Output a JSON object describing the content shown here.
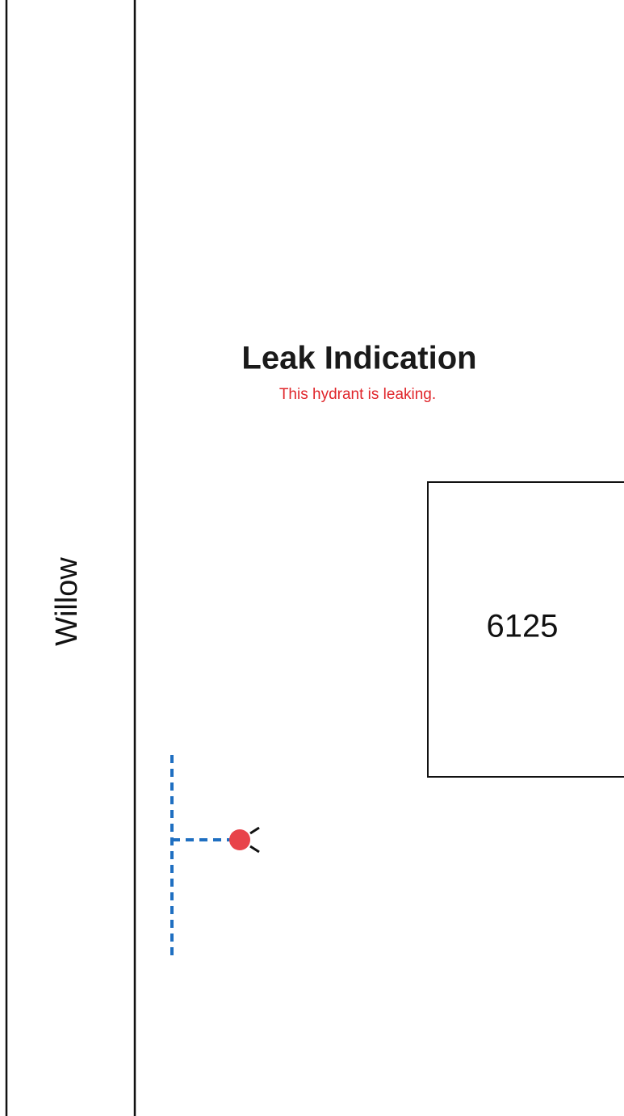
{
  "street": {
    "name": "Willow"
  },
  "alert": {
    "title": "Leak Indication",
    "message": "This hydrant is leaking."
  },
  "building": {
    "number": "6125"
  }
}
